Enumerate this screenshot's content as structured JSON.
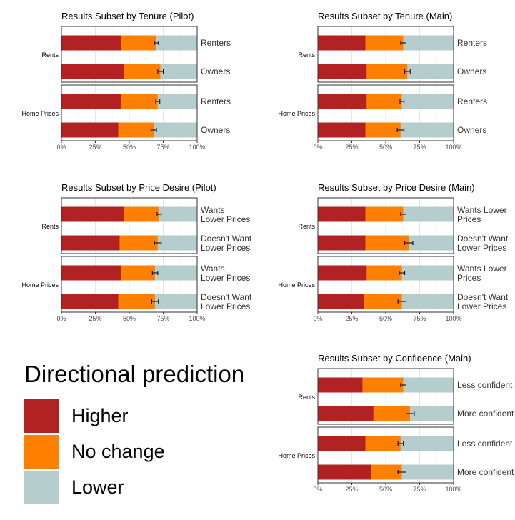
{
  "colors": {
    "higher": "#b22222",
    "no_change": "#ff7f00",
    "lower": "#b5cdcd",
    "grid": "#e6e6e6",
    "frame": "#333333",
    "text": "#333333",
    "err": "#000000"
  },
  "legend": {
    "title": "Directional prediction",
    "items": [
      {
        "label": "Higher",
        "color": "#b22222"
      },
      {
        "label": "No change",
        "color": "#ff7f00"
      },
      {
        "label": "Lower",
        "color": "#b5cdcd"
      }
    ]
  },
  "chart_data": [
    {
      "type": "bar",
      "orientation": "horizontal-stacked",
      "title": "Results Subset by Tenure (Pilot)",
      "xlim": [
        0,
        100
      ],
      "xticks": [
        "0%",
        "25%",
        "50%",
        "75%",
        "100%"
      ],
      "facets": [
        {
          "label": "Rents",
          "rows": [
            {
              "label": [
                "Renters"
              ],
              "higher": 44,
              "no_change": 26,
              "err": 1.5
            },
            {
              "label": [
                "Owners"
              ],
              "higher": 46,
              "no_change": 27,
              "err": 2
            }
          ]
        },
        {
          "label": "Home Prices",
          "rows": [
            {
              "label": [
                "Renters"
              ],
              "higher": 44,
              "no_change": 27,
              "err": 1.5
            },
            {
              "label": [
                "Owners"
              ],
              "higher": 42,
              "no_change": 26,
              "err": 2
            }
          ]
        }
      ]
    },
    {
      "type": "bar",
      "orientation": "horizontal-stacked",
      "title": "Results Subset by Tenure (Main)",
      "xlim": [
        0,
        100
      ],
      "xticks": [
        "0%",
        "25%",
        "50%",
        "75%",
        "100%"
      ],
      "facets": [
        {
          "label": "Rents",
          "rows": [
            {
              "label": [
                "Renters"
              ],
              "higher": 35,
              "no_change": 28,
              "err": 2
            },
            {
              "label": [
                "Owners"
              ],
              "higher": 36,
              "no_change": 30,
              "err": 2
            }
          ]
        },
        {
          "label": "Home Prices",
          "rows": [
            {
              "label": [
                "Renters"
              ],
              "higher": 36,
              "no_change": 26,
              "err": 1.5
            },
            {
              "label": [
                "Owners"
              ],
              "higher": 35,
              "no_change": 26,
              "err": 2.5
            }
          ]
        }
      ]
    },
    {
      "type": "bar",
      "orientation": "horizontal-stacked",
      "title": "Results Subset by Price Desire (Pilot)",
      "xlim": [
        0,
        100
      ],
      "xticks": [
        "0%",
        "25%",
        "50%",
        "75%",
        "100%"
      ],
      "facets": [
        {
          "label": "Rents",
          "rows": [
            {
              "label": [
                "Wants",
                "Lower Prices"
              ],
              "higher": 46,
              "no_change": 26,
              "err": 1.5
            },
            {
              "label": [
                "Doesn't Want",
                "Lower Prices"
              ],
              "higher": 43,
              "no_change": 28,
              "err": 2.5
            }
          ]
        },
        {
          "label": "Home Prices",
          "rows": [
            {
              "label": [
                "Wants",
                "Lower Prices"
              ],
              "higher": 44,
              "no_change": 25,
              "err": 2
            },
            {
              "label": [
                "Doesn't Want",
                "Lower Prices"
              ],
              "higher": 42,
              "no_change": 27,
              "err": 2.5
            }
          ]
        }
      ]
    },
    {
      "type": "bar",
      "orientation": "horizontal-stacked",
      "title": "Results Subset by Price Desire (Main)",
      "xlim": [
        0,
        100
      ],
      "xticks": [
        "0%",
        "25%",
        "50%",
        "75%",
        "100%"
      ],
      "facets": [
        {
          "label": "Rents",
          "rows": [
            {
              "label": [
                "Wants Lower",
                "Prices"
              ],
              "higher": 35,
              "no_change": 28,
              "err": 2
            },
            {
              "label": [
                "Doesn't Want",
                "Lower Prices"
              ],
              "higher": 35,
              "no_change": 32,
              "err": 3
            }
          ]
        },
        {
          "label": "Home Prices",
          "rows": [
            {
              "label": [
                "Wants Lower",
                "Prices"
              ],
              "higher": 36,
              "no_change": 26,
              "err": 2
            },
            {
              "label": [
                "Doesn't Want",
                "Lower Prices"
              ],
              "higher": 34,
              "no_change": 28,
              "err": 3
            }
          ]
        }
      ]
    },
    {
      "type": "bar",
      "orientation": "horizontal-stacked",
      "title": "Results Subset by Confidence (Main)",
      "xlim": [
        0,
        100
      ],
      "xticks": [
        "0%",
        "25%",
        "50%",
        "75%",
        "100%"
      ],
      "facets": [
        {
          "label": "Rents",
          "rows": [
            {
              "label": [
                "Less confident"
              ],
              "higher": 33,
              "no_change": 30,
              "err": 2
            },
            {
              "label": [
                "More confident"
              ],
              "higher": 41,
              "no_change": 27,
              "err": 3
            }
          ]
        },
        {
          "label": "Home Prices",
          "rows": [
            {
              "label": [
                "Less confident"
              ],
              "higher": 35,
              "no_change": 26,
              "err": 2
            },
            {
              "label": [
                "More confident"
              ],
              "higher": 39,
              "no_change": 23,
              "err": 3
            }
          ]
        }
      ]
    }
  ]
}
